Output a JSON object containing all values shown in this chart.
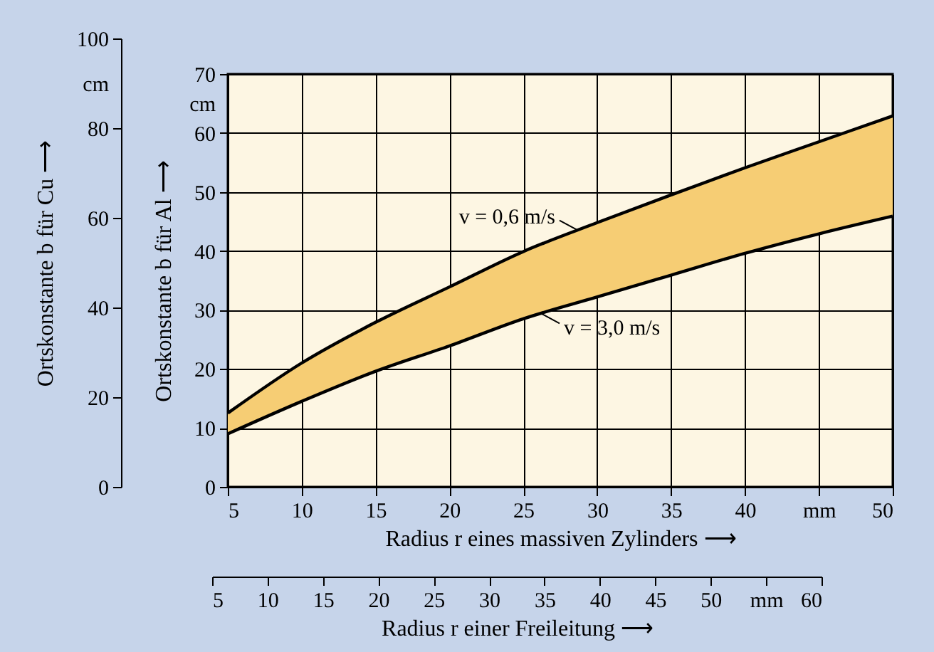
{
  "chart_data": {
    "type": "line",
    "x": [
      5,
      10,
      15,
      20,
      25,
      30,
      35,
      40,
      45,
      50
    ],
    "series": [
      {
        "color": "#000000",
        "values": [
          12.5,
          21.0,
          27.9,
          33.9,
          39.9,
          44.8,
          49.5,
          54.1,
          58.5,
          62.9
        ],
        "lower": [
          9.0,
          14.5,
          19.6,
          23.9,
          28.5,
          32.2,
          35.9,
          39.6,
          42.9,
          45.9
        ],
        "upper": [
          12.5,
          21.0,
          27.9,
          33.9,
          39.9,
          44.8,
          49.5,
          54.1,
          58.5,
          62.9
        ]
      },
      {
        "color": "#000000",
        "values": [
          9.0,
          14.5,
          19.6,
          23.9,
          28.5,
          32.2,
          35.9,
          39.6,
          42.9,
          45.9
        ]
      }
    ],
    "xlim": [
      5,
      50
    ],
    "xticks": [
      5,
      10,
      15,
      20,
      25,
      30,
      35,
      40,
      {
        "value": 45,
        "label": "mm"
      },
      50
    ],
    "xlabel": "Radius r eines massiven Zylinders ⟶",
    "x2lim": [
      5,
      60
    ],
    "x2ticks": [
      5,
      10,
      15,
      20,
      25,
      30,
      35,
      40,
      45,
      50,
      {
        "value": 55,
        "label": "mm"
      },
      60
    ],
    "x2label": "Radius r einer Freileitung ⟶",
    "ylim": [
      0,
      70
    ],
    "yticks": [
      0,
      10,
      20,
      30,
      40,
      50,
      60,
      {
        "value": 65,
        "label": "cm"
      },
      70
    ],
    "ylabel": "Ortskonstante b für Al ⟶",
    "y2lim": [
      0,
      100
    ],
    "y2ticks": [
      0,
      20,
      40,
      60,
      80,
      {
        "value": 90,
        "label": "cm"
      },
      100
    ],
    "y2label": "Ortskonstante b für Cu ⟶",
    "annotations": [
      {
        "text": "v = 0,6 m/s",
        "x": 28.7,
        "y": 43.5
      },
      {
        "text": "v = 3,0 m/s",
        "x": 26.2,
        "y": 29.4
      }
    ],
    "grid": true,
    "marker": "none",
    "line_style": "solid"
  }
}
